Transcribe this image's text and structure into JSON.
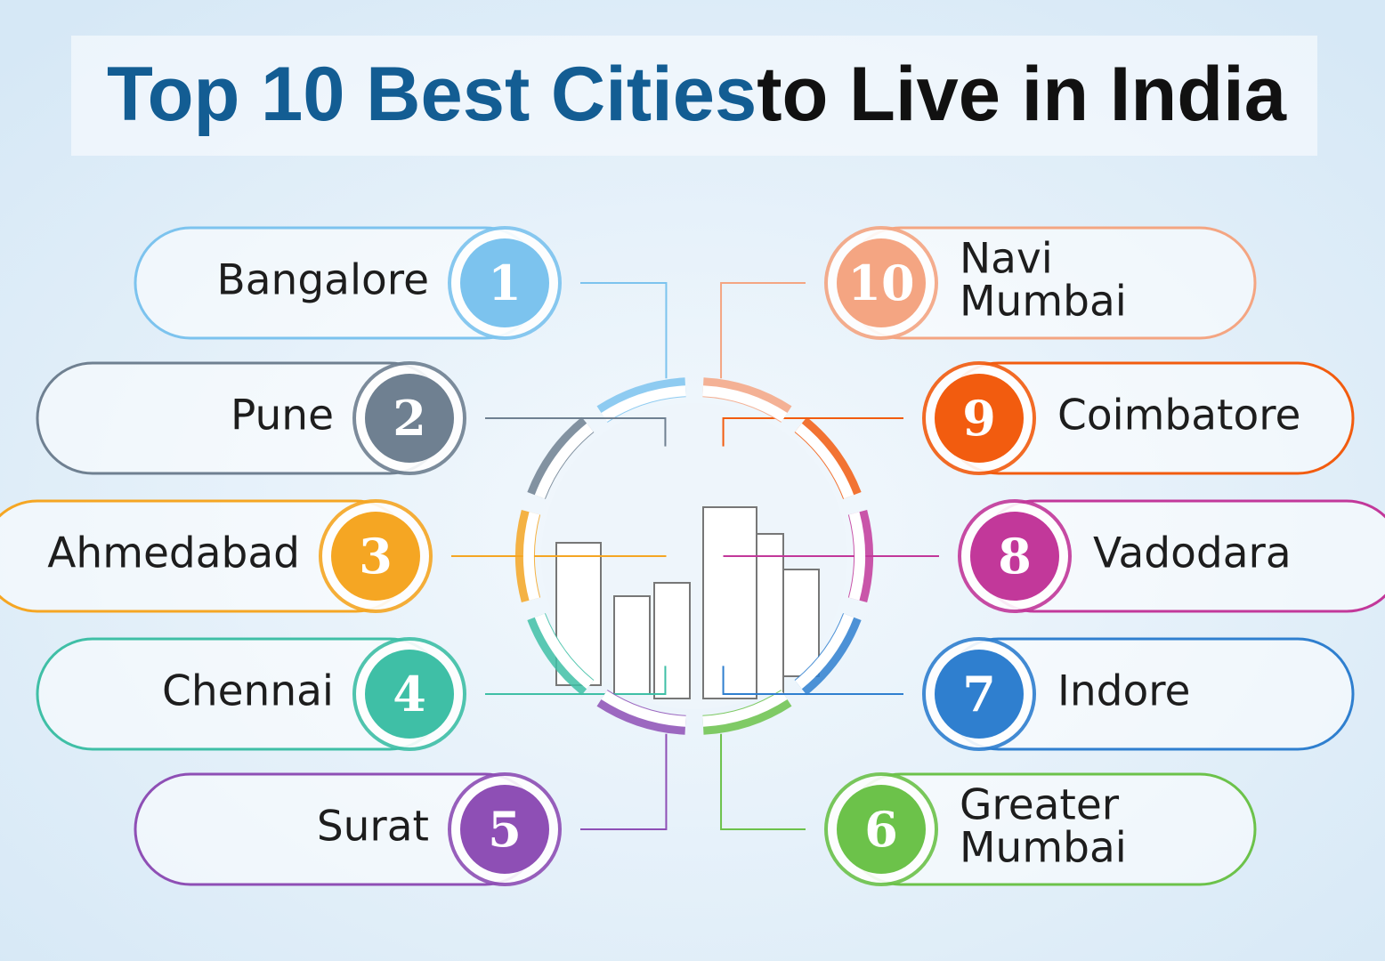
{
  "title": {
    "highlight": "Top 10 Best Cities",
    "rest": "to Live in India"
  },
  "items": [
    {
      "rank": 1,
      "city": "Bangalore"
    },
    {
      "rank": 2,
      "city": "Pune"
    },
    {
      "rank": 3,
      "city": "Ahmedabad"
    },
    {
      "rank": 4,
      "city": "Chennai"
    },
    {
      "rank": 5,
      "city": "Surat"
    },
    {
      "rank": 6,
      "city": [
        "Greater",
        "Mumbai"
      ]
    },
    {
      "rank": 7,
      "city": "Indore"
    },
    {
      "rank": 8,
      "city": "Vadodara"
    },
    {
      "rank": 9,
      "city": "Coimbatore"
    },
    {
      "rank": 10,
      "city": [
        "Navi",
        "Mumbai"
      ]
    }
  ]
}
